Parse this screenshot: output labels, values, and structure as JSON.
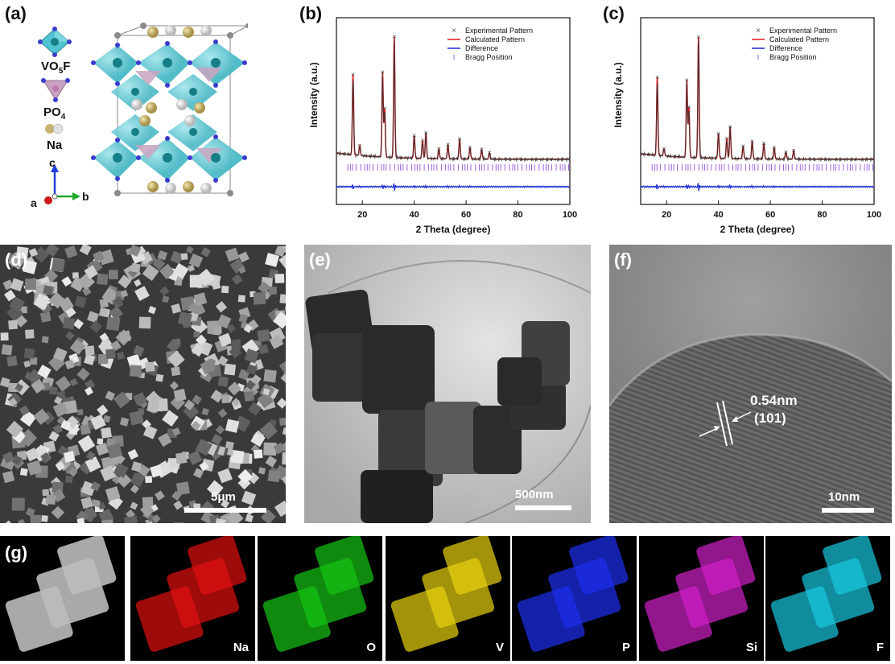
{
  "labels": {
    "a": "(a)",
    "b": "(b)",
    "c": "(c)",
    "d": "(d)",
    "e": "(e)",
    "f": "(f)",
    "g": "(g)"
  },
  "structure": {
    "legend_vo5f_main": "VO",
    "legend_vo5f_sub": "5",
    "legend_vo5f_tail": "F",
    "legend_po4_main": "PO",
    "legend_po4_sub": "4",
    "legend_na": "Na",
    "axis_c": "c",
    "axis_a": "a",
    "axis_b": "b"
  },
  "xrd_legend": [
    "Experimental Pattern",
    "Calculated Pattern",
    "Difference",
    "Bragg Position"
  ],
  "colors": {
    "experimental": "#333333",
    "calculated": "#e0191b",
    "difference": "#1a2bd0",
    "bragg": "#a160e0"
  },
  "chart_data": [
    {
      "type": "line",
      "xlabel": "2 Theta (degree)",
      "ylabel": "Intensity (a.u.)",
      "xlim": [
        10,
        100
      ],
      "xticks": [
        20,
        40,
        60,
        80,
        100
      ],
      "peaks": [
        {
          "x": 16.4,
          "y": 100
        },
        {
          "x": 19.0,
          "y": 12
        },
        {
          "x": 27.8,
          "y": 105
        },
        {
          "x": 28.6,
          "y": 60
        },
        {
          "x": 32.3,
          "y": 150
        },
        {
          "x": 40.0,
          "y": 28
        },
        {
          "x": 43.2,
          "y": 22
        },
        {
          "x": 44.5,
          "y": 32
        },
        {
          "x": 49.5,
          "y": 12
        },
        {
          "x": 53.0,
          "y": 18
        },
        {
          "x": 57.5,
          "y": 25
        },
        {
          "x": 61.5,
          "y": 14
        },
        {
          "x": 66.0,
          "y": 12
        },
        {
          "x": 69.0,
          "y": 8
        }
      ],
      "series": [
        {
          "name": "Experimental Pattern"
        },
        {
          "name": "Calculated Pattern"
        },
        {
          "name": "Difference"
        },
        {
          "name": "Bragg Position"
        }
      ],
      "legend": "top-right"
    },
    {
      "type": "line",
      "xlabel": "2 Theta (degree)",
      "ylabel": "Intensity (a.u.)",
      "xlim": [
        10,
        100
      ],
      "xticks": [
        20,
        40,
        60,
        80,
        100
      ],
      "peaks": [
        {
          "x": 16.4,
          "y": 110
        },
        {
          "x": 19.0,
          "y": 10
        },
        {
          "x": 27.8,
          "y": 108
        },
        {
          "x": 28.6,
          "y": 70
        },
        {
          "x": 32.3,
          "y": 170
        },
        {
          "x": 40.0,
          "y": 35
        },
        {
          "x": 43.2,
          "y": 28
        },
        {
          "x": 44.5,
          "y": 45
        },
        {
          "x": 49.5,
          "y": 18
        },
        {
          "x": 53.0,
          "y": 25
        },
        {
          "x": 57.5,
          "y": 22
        },
        {
          "x": 61.5,
          "y": 16
        },
        {
          "x": 66.0,
          "y": 10
        },
        {
          "x": 69.0,
          "y": 12
        }
      ],
      "series": [
        {
          "name": "Experimental Pattern"
        },
        {
          "name": "Calculated Pattern"
        },
        {
          "name": "Difference"
        },
        {
          "name": "Bragg Position"
        }
      ],
      "legend": "top-right"
    }
  ],
  "scalebars": {
    "d": "5μm",
    "e": "500nm",
    "f": "10nm"
  },
  "hrtem": {
    "d_spacing": "0.54nm",
    "plane": "(101)"
  },
  "eds": {
    "elements": [
      {
        "symbol": "",
        "color": "#bbbbbb"
      },
      {
        "symbol": "Na",
        "color": "#e01010"
      },
      {
        "symbol": "O",
        "color": "#16c414"
      },
      {
        "symbol": "V",
        "color": "#e8d210"
      },
      {
        "symbol": "P",
        "color": "#1c2ff0"
      },
      {
        "symbol": "Si",
        "color": "#d020c8"
      },
      {
        "symbol": "F",
        "color": "#18c8e0"
      }
    ]
  }
}
